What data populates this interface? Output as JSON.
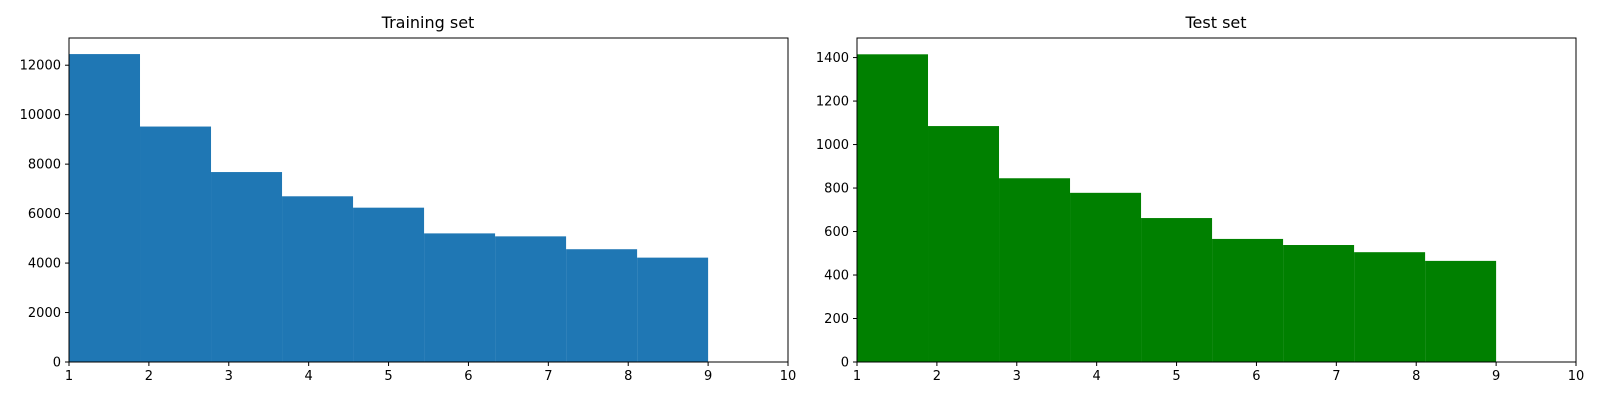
{
  "chart_data": [
    {
      "type": "bar",
      "title": "Training set",
      "xlabel": "",
      "ylabel": "",
      "color": "#1f77b4",
      "bin_edges": [
        1,
        1.8888889,
        2.7777778,
        3.6666667,
        4.5555556,
        5.4444444,
        6.3333333,
        7.2222222,
        8.1111111,
        9
      ],
      "values": [
        12450,
        9520,
        7680,
        6700,
        6240,
        5200,
        5080,
        4560,
        4220
      ],
      "xlim": [
        1,
        10
      ],
      "ylim": [
        0,
        13100
      ],
      "xticks": [
        "1",
        "2",
        "3",
        "4",
        "5",
        "6",
        "7",
        "8",
        "9",
        "10"
      ],
      "xtick_values": [
        1,
        2,
        3,
        4,
        5,
        6,
        7,
        8,
        9,
        10
      ],
      "yticks": [
        "0",
        "2000",
        "4000",
        "6000",
        "8000",
        "10000",
        "12000"
      ],
      "ytick_values": [
        0,
        2000,
        4000,
        6000,
        8000,
        10000,
        12000
      ],
      "grid": false
    },
    {
      "type": "bar",
      "title": "Test set",
      "xlabel": "",
      "ylabel": "",
      "color": "#008000",
      "bin_edges": [
        1,
        1.8888889,
        2.7777778,
        3.6666667,
        4.5555556,
        5.4444444,
        6.3333333,
        7.2222222,
        8.1111111,
        9
      ],
      "values": [
        1415,
        1085,
        845,
        778,
        662,
        566,
        538,
        505,
        465
      ],
      "xlim": [
        1,
        10
      ],
      "ylim": [
        0,
        1490
      ],
      "xticks": [
        "1",
        "2",
        "3",
        "4",
        "5",
        "6",
        "7",
        "8",
        "9",
        "10"
      ],
      "xtick_values": [
        1,
        2,
        3,
        4,
        5,
        6,
        7,
        8,
        9,
        10
      ],
      "yticks": [
        "0",
        "200",
        "400",
        "600",
        "800",
        "1000",
        "1200",
        "1400"
      ],
      "ytick_values": [
        0,
        200,
        400,
        600,
        800,
        1000,
        1200,
        1400
      ],
      "grid": false
    }
  ]
}
